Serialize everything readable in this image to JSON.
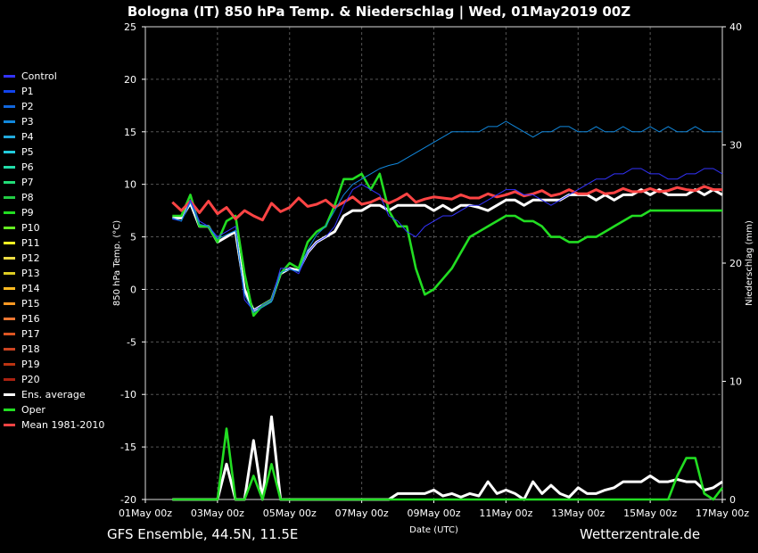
{
  "header": {
    "title": "Bologna  (IT)  850 hPa Temp. & Niederschlag | Wed, 01May2019 00Z"
  },
  "footer": {
    "left": "GFS Ensemble, 44.5N, 11.5E",
    "right": "Wetterzentrale.de"
  },
  "chart_data": {
    "type": "line",
    "title": "Bologna  (IT)  850 hPa Temp. & Niederschlag | Wed, 01May2019 00Z",
    "xlabel": "Date (UTC)",
    "ylabel_left": "850 hPa Temp. (°C)",
    "ylabel_right": "Niederschlag (mm)",
    "ylim_left": [
      -20,
      25
    ],
    "ylim_right": [
      0,
      40
    ],
    "yticks_left": [
      "25",
      "20",
      "15",
      "10",
      "5",
      "0",
      "-5",
      "-10",
      "-15",
      "-20"
    ],
    "yticks_right": [
      "40",
      "30",
      "20",
      "10",
      "0"
    ],
    "xticks": [
      "01May 00z",
      "03May 00z",
      "05May 00z",
      "07May 00z",
      "09May 00z",
      "11May 00z",
      "13May 00z",
      "15May 00z",
      "17May 00z"
    ],
    "x_days": [
      0.75,
      1,
      1.25,
      1.5,
      1.75,
      2,
      2.25,
      2.5,
      2.75,
      3,
      3.25,
      3.5,
      3.75,
      4,
      4.25,
      4.5,
      4.75,
      5,
      5.25,
      5.5,
      5.75,
      6,
      6.25,
      6.5,
      6.75,
      7,
      7.25,
      7.5,
      7.75,
      8,
      8.25,
      8.5,
      8.75,
      9,
      9.25,
      9.5,
      9.75,
      10,
      10.25,
      10.5,
      10.75,
      11,
      11.25,
      11.5,
      11.75,
      12,
      12.25,
      12.5,
      12.75,
      13,
      13.25,
      13.5,
      13.75,
      14,
      14.25,
      14.5,
      14.75,
      15,
      15.25,
      15.5,
      15.75,
      16
    ],
    "legend": [
      {
        "name": "Control",
        "color": "#3333ff"
      },
      {
        "name": "P1",
        "color": "#1144ee"
      },
      {
        "name": "P2",
        "color": "#1166dd"
      },
      {
        "name": "P3",
        "color": "#1188dd"
      },
      {
        "name": "P4",
        "color": "#22aadd"
      },
      {
        "name": "P5",
        "color": "#22ccdd"
      },
      {
        "name": "P6",
        "color": "#22ddaa"
      },
      {
        "name": "P7",
        "color": "#22dd77"
      },
      {
        "name": "P8",
        "color": "#22cc44"
      },
      {
        "name": "P9",
        "color": "#22dd22"
      },
      {
        "name": "P10",
        "color": "#66ee22"
      },
      {
        "name": "P11",
        "color": "#ffff22"
      },
      {
        "name": "P12",
        "color": "#eedd44"
      },
      {
        "name": "P13",
        "color": "#ddcc22"
      },
      {
        "name": "P14",
        "color": "#ffbb22"
      },
      {
        "name": "P15",
        "color": "#ff9922"
      },
      {
        "name": "P16",
        "color": "#ee7733"
      },
      {
        "name": "P17",
        "color": "#dd5522"
      },
      {
        "name": "P18",
        "color": "#cc4422"
      },
      {
        "name": "P19",
        "color": "#bb3311"
      },
      {
        "name": "P20",
        "color": "#aa2211"
      },
      {
        "name": "Ens. average",
        "color": "#ffffff"
      },
      {
        "name": "Oper",
        "color": "#22dd22"
      },
      {
        "name": "Mean 1981-2010",
        "color": "#ff4444"
      }
    ],
    "series_temp": {
      "Ens. average": [
        6.8,
        6.8,
        8.2,
        6,
        6,
        4.5,
        5,
        5.5,
        0,
        -2,
        -1.5,
        -1,
        1.5,
        2,
        1.8,
        3.5,
        4.5,
        5,
        5.5,
        7,
        7.5,
        7.5,
        8,
        8,
        7.5,
        8,
        8,
        8,
        8,
        7.5,
        8,
        7.5,
        8,
        8,
        7.8,
        7.5,
        8,
        8.5,
        8.5,
        8,
        8.5,
        8.5,
        8.5,
        8.5,
        9,
        9,
        9,
        8.5,
        9,
        8.5,
        9,
        9,
        9.5,
        9,
        9.5,
        9,
        9,
        9,
        9.5,
        9,
        9.5,
        9
      ],
      "Oper": [
        7,
        7,
        9,
        6,
        6,
        4.5,
        6.5,
        7,
        1.5,
        -2.5,
        -1.5,
        -1,
        1.5,
        2.5,
        2,
        4.5,
        5.5,
        6,
        8,
        10.5,
        10.5,
        11,
        9.5,
        11,
        7.5,
        6,
        6,
        2,
        -0.5,
        0,
        1,
        2,
        3.5,
        5,
        5.5,
        6,
        6.5,
        7,
        7,
        6.5,
        6.5,
        6,
        5,
        5,
        4.5,
        4.5,
        5,
        5,
        5.5,
        6,
        6.5,
        7,
        7,
        7.5,
        7.5,
        7.5,
        7.5,
        7.5,
        7.5,
        7.5,
        7.5,
        7.5
      ],
      "Mean 1981-2010": [
        8.3,
        7.5,
        8.4,
        7.3,
        8.4,
        7.2,
        7.8,
        6.7,
        7.5,
        7,
        6.6,
        8.2,
        7.4,
        7.8,
        8.7,
        7.9,
        8.1,
        8.5,
        7.8,
        8.3,
        8.8,
        8.1,
        8.3,
        8.7,
        8.2,
        8.6,
        9.1,
        8.3,
        8.6,
        8.8,
        8.7,
        8.6,
        9,
        8.7,
        8.7,
        9.1,
        8.8,
        9,
        9.3,
        8.9,
        9.1,
        9.4,
        8.9,
        9.1,
        9.5,
        9.1,
        9.1,
        9.5,
        9.1,
        9.2,
        9.6,
        9.3,
        9.3,
        9.6,
        9.3,
        9.4,
        9.7,
        9.5,
        9.4,
        9.8,
        9.5,
        9.5
      ],
      "Control": [
        6.7,
        6.5,
        8.5,
        6.5,
        6,
        5,
        5.5,
        6,
        -1,
        -2,
        -1.5,
        -1,
        2,
        2,
        1.5,
        3.5,
        4.5,
        5,
        6,
        8,
        9.5,
        10,
        9.5,
        9,
        7,
        6.5,
        5.5,
        5,
        6,
        6.5,
        7,
        7,
        7.5,
        8,
        8,
        8.5,
        9,
        9.5,
        9.5,
        9,
        9,
        8.5,
        8,
        8.5,
        9,
        9.5,
        10,
        10.5,
        10.5,
        11,
        11,
        11.5,
        11.5,
        11,
        11,
        10.5,
        10.5,
        11,
        11,
        11.5,
        11.5,
        11
      ],
      "P3": [
        6.8,
        6.5,
        8.3,
        6.2,
        6,
        4.8,
        5.2,
        5.6,
        -0.5,
        -2.2,
        -1.7,
        -1.2,
        1.6,
        1.9,
        1.7,
        3.8,
        5.2,
        6,
        7.5,
        9,
        10,
        10.5,
        11,
        11.5,
        11.8,
        12,
        12.5,
        13,
        13.5,
        14,
        14.5,
        15,
        15,
        15,
        15,
        15.5,
        15.5,
        16,
        15.5,
        15,
        14.5,
        15,
        15,
        15.5,
        15.5,
        15,
        15,
        15.5,
        15,
        15,
        15.5,
        15,
        15,
        15.5,
        15,
        15.5,
        15,
        15,
        15.5,
        15,
        15,
        15
      ]
    },
    "series_precip": {
      "Ens. average": [
        0,
        0,
        0,
        0,
        0,
        0,
        3,
        0,
        0,
        5,
        0,
        7,
        0,
        0,
        0,
        0,
        0,
        0,
        0,
        0,
        0,
        0,
        0,
        0,
        0,
        0.5,
        0.5,
        0.5,
        0.5,
        0.8,
        0.3,
        0.5,
        0.2,
        0.5,
        0.3,
        1.5,
        0.5,
        0.8,
        0.5,
        0,
        1.5,
        0.5,
        1.2,
        0.5,
        0.2,
        1,
        0.5,
        0.5,
        0.8,
        1,
        1.5,
        1.5,
        1.5,
        2,
        1.5,
        1.5,
        1.7,
        1.5,
        1.5,
        0.8,
        1,
        1.5
      ],
      "Oper": [
        0,
        0,
        0,
        0,
        0,
        0,
        6,
        0,
        0,
        2,
        0,
        3,
        0,
        0,
        0,
        0,
        0,
        0,
        0,
        0,
        0,
        0,
        0,
        0,
        0,
        0,
        0,
        0,
        0,
        0,
        0,
        0,
        0,
        0,
        0,
        0,
        0,
        0,
        0,
        0,
        0,
        0,
        0,
        0,
        0,
        0,
        0,
        0,
        0,
        0,
        0,
        0,
        0,
        0,
        0,
        0,
        2,
        3.5,
        3.5,
        0.5,
        0,
        1
      ]
    }
  }
}
